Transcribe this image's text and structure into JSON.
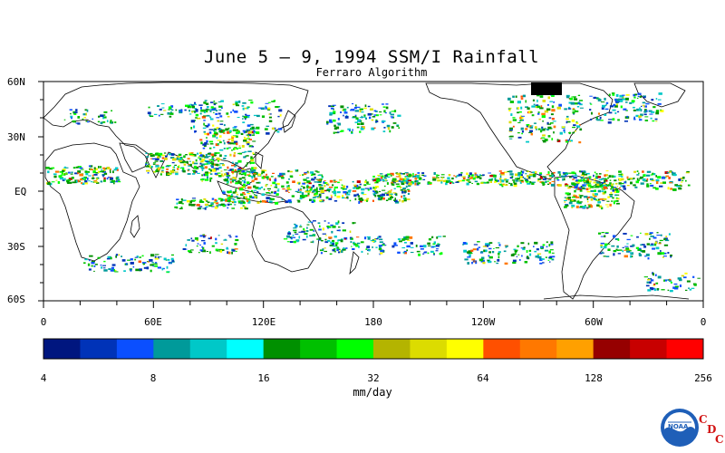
{
  "title": "June 5 – 9, 1994 SSM/I Rainfall",
  "subtitle": "Ferraro Algorithm",
  "lat_labels": [
    "60N",
    "30N",
    "EQ",
    "30S",
    "60S"
  ],
  "lon_labels": [
    "0",
    "60E",
    "120E",
    "180",
    "120W",
    "60W",
    "0"
  ],
  "colorbar": {
    "unit": "mm/day",
    "ticks": [
      "4",
      "8",
      "16",
      "32",
      "64",
      "128",
      "256"
    ],
    "colors": [
      "#00167f",
      "#0033b8",
      "#0b4fff",
      "#009a9a",
      "#00c8c8",
      "#00ffff",
      "#009000",
      "#00c000",
      "#00ff00",
      "#b4b400",
      "#dcdc00",
      "#ffff00",
      "#ff5000",
      "#ff7800",
      "#ffa000",
      "#960000",
      "#c80000",
      "#ff0000"
    ]
  },
  "logo": {
    "name": "noaa-logo",
    "text": "NOAA",
    "cdc_letters": [
      "C",
      "D",
      "C"
    ]
  }
}
